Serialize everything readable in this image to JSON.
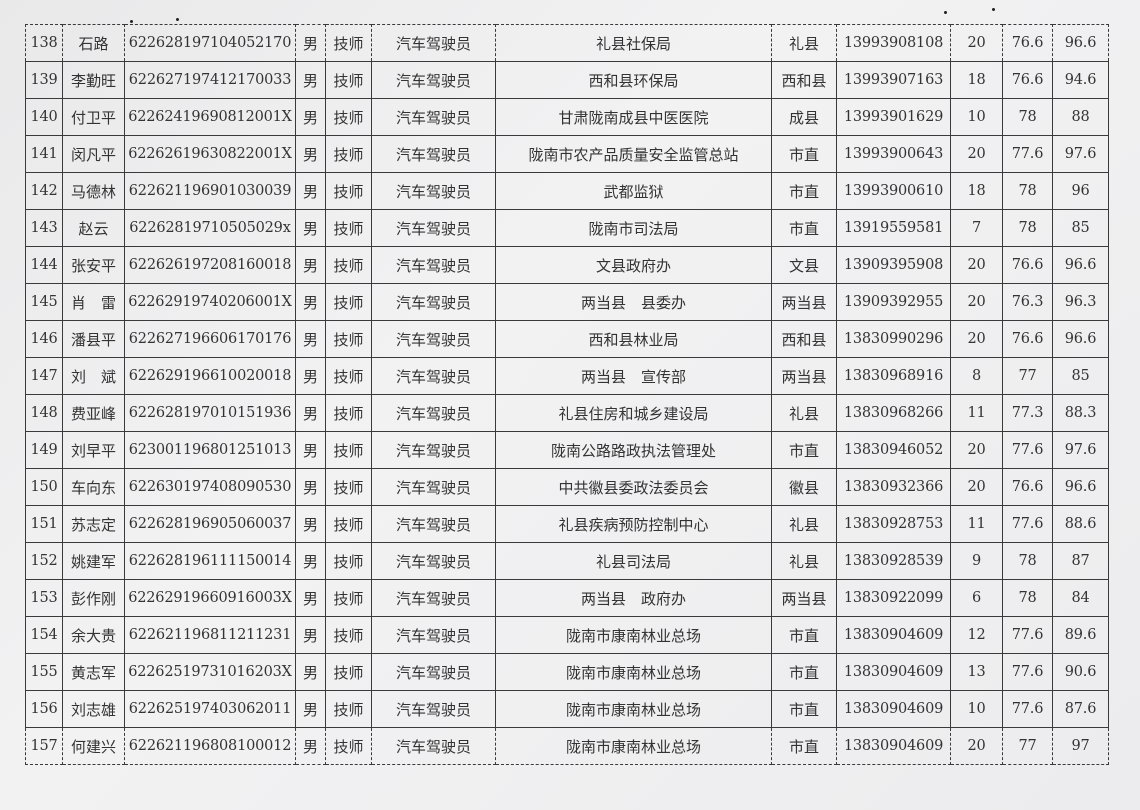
{
  "rows": [
    [
      "138",
      "石路",
      "622628197104052170",
      "男",
      "技师",
      "汽车驾驶员",
      "礼县社保局",
      "礼县",
      "13993908108",
      "20",
      "76.6",
      "96.6"
    ],
    [
      "139",
      "李勤旺",
      "622627197412170033",
      "男",
      "技师",
      "汽车驾驶员",
      "西和县环保局",
      "西和县",
      "13993907163",
      "18",
      "76.6",
      "94.6"
    ],
    [
      "140",
      "付卫平",
      "62262419690812001X",
      "男",
      "技师",
      "汽车驾驶员",
      "甘肃陇南成县中医医院",
      "成县",
      "13993901629",
      "10",
      "78",
      "88"
    ],
    [
      "141",
      "闵凡平",
      "62262619630822001X",
      "男",
      "技师",
      "汽车驾驶员",
      "陇南市农产品质量安全监管总站",
      "市直",
      "13993900643",
      "20",
      "77.6",
      "97.6"
    ],
    [
      "142",
      "马德林",
      "622621196901030039",
      "男",
      "技师",
      "汽车驾驶员",
      "武都监狱",
      "市直",
      "13993900610",
      "18",
      "78",
      "96"
    ],
    [
      "143",
      "赵云",
      "62262819710505029x",
      "男",
      "技师",
      "汽车驾驶员",
      "陇南市司法局",
      "市直",
      "13919559581",
      "7",
      "78",
      "85"
    ],
    [
      "144",
      "张安平",
      "622626197208160018",
      "男",
      "技师",
      "汽车驾驶员",
      "文县政府办",
      "文县",
      "13909395908",
      "20",
      "76.6",
      "96.6"
    ],
    [
      "145",
      "肖　雷",
      "62262919740206001X",
      "男",
      "技师",
      "汽车驾驶员",
      "两当县　县委办",
      "两当县",
      "13909392955",
      "20",
      "76.3",
      "96.3"
    ],
    [
      "146",
      "潘县平",
      "622627196606170176",
      "男",
      "技师",
      "汽车驾驶员",
      "西和县林业局",
      "西和县",
      "13830990296",
      "20",
      "76.6",
      "96.6"
    ],
    [
      "147",
      "刘　斌",
      "622629196610020018",
      "男",
      "技师",
      "汽车驾驶员",
      "两当县　宣传部",
      "两当县",
      "13830968916",
      "8",
      "77",
      "85"
    ],
    [
      "148",
      "费亚峰",
      "622628197010151936",
      "男",
      "技师",
      "汽车驾驶员",
      "礼县住房和城乡建设局",
      "礼县",
      "13830968266",
      "11",
      "77.3",
      "88.3"
    ],
    [
      "149",
      "刘早平",
      "623001196801251013",
      "男",
      "技师",
      "汽车驾驶员",
      "陇南公路路政执法管理处",
      "市直",
      "13830946052",
      "20",
      "77.6",
      "97.6"
    ],
    [
      "150",
      "车向东",
      "622630197408090530",
      "男",
      "技师",
      "汽车驾驶员",
      "中共徽县委政法委员会",
      "徽县",
      "13830932366",
      "20",
      "76.6",
      "96.6"
    ],
    [
      "151",
      "苏志定",
      "622628196905060037",
      "男",
      "技师",
      "汽车驾驶员",
      "礼县疾病预防控制中心",
      "礼县",
      "13830928753",
      "11",
      "77.6",
      "88.6"
    ],
    [
      "152",
      "姚建军",
      "622628196111150014",
      "男",
      "技师",
      "汽车驾驶员",
      "礼县司法局",
      "礼县",
      "13830928539",
      "9",
      "78",
      "87"
    ],
    [
      "153",
      "彭作刚",
      "62262919660916003X",
      "男",
      "技师",
      "汽车驾驶员",
      "两当县　政府办",
      "两当县",
      "13830922099",
      "6",
      "78",
      "84"
    ],
    [
      "154",
      "余大贵",
      "622621196811211231",
      "男",
      "技师",
      "汽车驾驶员",
      "陇南市康南林业总场",
      "市直",
      "13830904609",
      "12",
      "77.6",
      "89.6"
    ],
    [
      "155",
      "黄志军",
      "62262519731016203X",
      "男",
      "技师",
      "汽车驾驶员",
      "陇南市康南林业总场",
      "市直",
      "13830904609",
      "13",
      "77.6",
      "90.6"
    ],
    [
      "156",
      "刘志雄",
      "622625197403062011",
      "男",
      "技师",
      "汽车驾驶员",
      "陇南市康南林业总场",
      "市直",
      "13830904609",
      "10",
      "77.6",
      "87.6"
    ],
    [
      "157",
      "何建兴",
      "622621196808100012",
      "男",
      "技师",
      "汽车驾驶员",
      "陇南市康南林业总场",
      "市直",
      "13830904609",
      "20",
      "77",
      "97"
    ]
  ]
}
